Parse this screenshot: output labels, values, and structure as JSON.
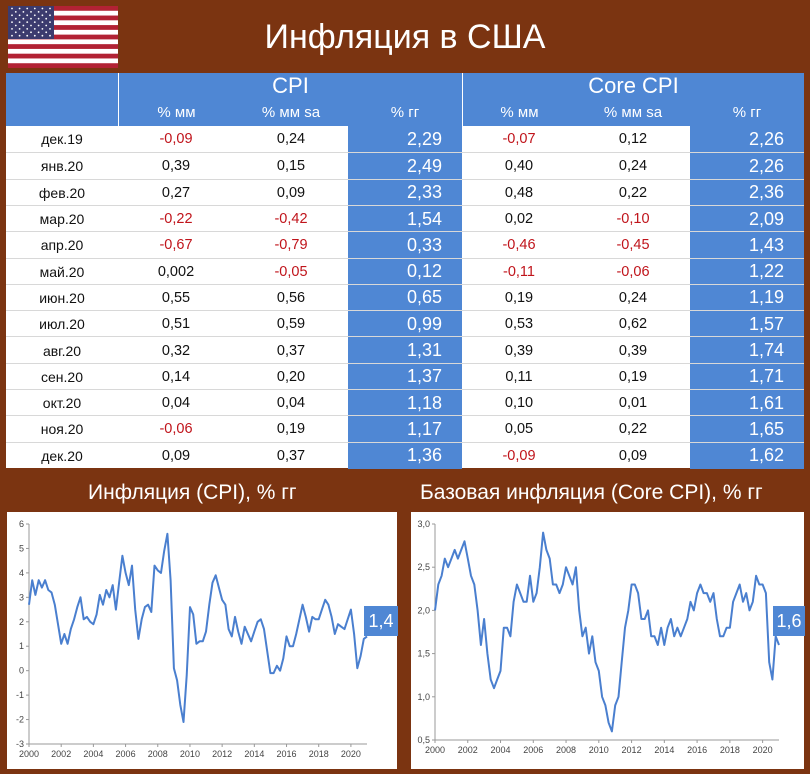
{
  "title": "Инфляция в США",
  "flag_icon": "us-flag-icon",
  "colors": {
    "brown": "#7b3411",
    "blue": "#4f87d4",
    "red": "#c0141b",
    "line": "#4a7fcf"
  },
  "table": {
    "groups": [
      "CPI",
      "Core CPI"
    ],
    "columns": [
      "% мм",
      "% мм sa",
      "% гг",
      "% мм",
      "% мм sa",
      "% гг"
    ],
    "rows": [
      {
        "label": "дек.19",
        "cpi_mm": "-0,09",
        "cpi_mm_sa": "0,24",
        "cpi_yy": "2,29",
        "core_mm": "-0,07",
        "core_mm_sa": "0,12",
        "core_yy": "2,26"
      },
      {
        "label": "янв.20",
        "cpi_mm": "0,39",
        "cpi_mm_sa": "0,15",
        "cpi_yy": "2,49",
        "core_mm": "0,40",
        "core_mm_sa": "0,24",
        "core_yy": "2,26"
      },
      {
        "label": "фев.20",
        "cpi_mm": "0,27",
        "cpi_mm_sa": "0,09",
        "cpi_yy": "2,33",
        "core_mm": "0,48",
        "core_mm_sa": "0,22",
        "core_yy": "2,36"
      },
      {
        "label": "мар.20",
        "cpi_mm": "-0,22",
        "cpi_mm_sa": "-0,42",
        "cpi_yy": "1,54",
        "core_mm": "0,02",
        "core_mm_sa": "-0,10",
        "core_yy": "2,09"
      },
      {
        "label": "апр.20",
        "cpi_mm": "-0,67",
        "cpi_mm_sa": "-0,79",
        "cpi_yy": "0,33",
        "core_mm": "-0,46",
        "core_mm_sa": "-0,45",
        "core_yy": "1,43"
      },
      {
        "label": "май.20",
        "cpi_mm": "0,002",
        "cpi_mm_sa": "-0,05",
        "cpi_yy": "0,12",
        "core_mm": "-0,11",
        "core_mm_sa": "-0,06",
        "core_yy": "1,22"
      },
      {
        "label": "июн.20",
        "cpi_mm": "0,55",
        "cpi_mm_sa": "0,56",
        "cpi_yy": "0,65",
        "core_mm": "0,19",
        "core_mm_sa": "0,24",
        "core_yy": "1,19"
      },
      {
        "label": "июл.20",
        "cpi_mm": "0,51",
        "cpi_mm_sa": "0,59",
        "cpi_yy": "0,99",
        "core_mm": "0,53",
        "core_mm_sa": "0,62",
        "core_yy": "1,57"
      },
      {
        "label": "авг.20",
        "cpi_mm": "0,32",
        "cpi_mm_sa": "0,37",
        "cpi_yy": "1,31",
        "core_mm": "0,39",
        "core_mm_sa": "0,39",
        "core_yy": "1,74"
      },
      {
        "label": "сен.20",
        "cpi_mm": "0,14",
        "cpi_mm_sa": "0,20",
        "cpi_yy": "1,37",
        "core_mm": "0,11",
        "core_mm_sa": "0,19",
        "core_yy": "1,71"
      },
      {
        "label": "окт.20",
        "cpi_mm": "0,04",
        "cpi_mm_sa": "0,04",
        "cpi_yy": "1,18",
        "core_mm": "0,10",
        "core_mm_sa": "0,01",
        "core_yy": "1,61"
      },
      {
        "label": "ноя.20",
        "cpi_mm": "-0,06",
        "cpi_mm_sa": "0,19",
        "cpi_yy": "1,17",
        "core_mm": "0,05",
        "core_mm_sa": "0,22",
        "core_yy": "1,65"
      },
      {
        "label": "дек.20",
        "cpi_mm": "0,09",
        "cpi_mm_sa": "0,37",
        "cpi_yy": "1,36",
        "core_mm": "-0,09",
        "core_mm_sa": "0,09",
        "core_yy": "1,62"
      }
    ]
  },
  "chart_data": [
    {
      "type": "line",
      "title": "Инфляция (CPI), % гг",
      "ylim": [
        -3,
        6
      ],
      "yticks": [
        "-3",
        "-2",
        "-1",
        "0",
        "1",
        "2",
        "3",
        "4",
        "5",
        "6"
      ],
      "xlim": [
        2000,
        2021
      ],
      "xticks": [
        "2000",
        "2002",
        "2004",
        "2006",
        "2008",
        "2010",
        "2012",
        "2014",
        "2016",
        "2018",
        "2020"
      ],
      "grid": false,
      "end_label": "1,4",
      "series": [
        {
          "x": [
            2000.0,
            2000.2,
            2000.4,
            2000.6,
            2000.8,
            2001.0,
            2001.2,
            2001.4,
            2001.6,
            2001.8,
            2002.0,
            2002.2,
            2002.4,
            2002.6,
            2002.8,
            2003.0,
            2003.2,
            2003.4,
            2003.6,
            2003.8,
            2004.0,
            2004.2,
            2004.4,
            2004.6,
            2004.8,
            2005.0,
            2005.2,
            2005.4,
            2005.6,
            2005.8,
            2006.0,
            2006.2,
            2006.4,
            2006.6,
            2006.8,
            2007.0,
            2007.2,
            2007.4,
            2007.6,
            2007.8,
            2008.0,
            2008.2,
            2008.4,
            2008.6,
            2008.8,
            2009.0,
            2009.2,
            2009.4,
            2009.6,
            2009.8,
            2010.0,
            2010.2,
            2010.4,
            2010.6,
            2010.8,
            2011.0,
            2011.2,
            2011.4,
            2011.6,
            2011.8,
            2012.0,
            2012.2,
            2012.4,
            2012.6,
            2012.8,
            2013.0,
            2013.2,
            2013.4,
            2013.6,
            2013.8,
            2014.0,
            2014.2,
            2014.4,
            2014.6,
            2014.8,
            2015.0,
            2015.2,
            2015.4,
            2015.6,
            2015.8,
            2016.0,
            2016.2,
            2016.4,
            2016.6,
            2016.8,
            2017.0,
            2017.2,
            2017.4,
            2017.6,
            2017.8,
            2018.0,
            2018.2,
            2018.4,
            2018.6,
            2018.8,
            2019.0,
            2019.2,
            2019.4,
            2019.6,
            2019.8,
            2020.0,
            2020.2,
            2020.4,
            2020.6,
            2020.8,
            2021.0
          ],
          "y": [
            2.7,
            3.7,
            3.1,
            3.7,
            3.4,
            3.7,
            3.3,
            3.2,
            2.7,
            1.9,
            1.1,
            1.5,
            1.1,
            1.7,
            2.1,
            2.6,
            3.0,
            2.1,
            2.2,
            2.0,
            1.9,
            2.3,
            3.1,
            2.7,
            3.3,
            3.0,
            3.5,
            2.5,
            3.6,
            4.7,
            4.0,
            3.5,
            4.3,
            2.5,
            1.3,
            2.1,
            2.6,
            2.7,
            2.4,
            4.3,
            4.1,
            4.0,
            4.9,
            5.6,
            3.7,
            0.1,
            -0.4,
            -1.4,
            -2.1,
            -0.2,
            2.6,
            2.3,
            1.1,
            1.2,
            1.2,
            1.6,
            2.7,
            3.6,
            3.9,
            3.4,
            2.9,
            2.7,
            1.7,
            1.4,
            2.2,
            1.6,
            1.1,
            1.8,
            1.5,
            1.2,
            1.6,
            2.0,
            2.1,
            1.7,
            0.8,
            -0.1,
            -0.1,
            0.2,
            0.0,
            0.5,
            1.4,
            1.0,
            1.0,
            1.5,
            2.1,
            2.7,
            2.2,
            1.6,
            2.2,
            2.1,
            2.1,
            2.5,
            2.9,
            2.7,
            2.2,
            1.5,
            1.9,
            1.8,
            1.7,
            2.1,
            2.5,
            1.5,
            0.1,
            0.6,
            1.3,
            1.4
          ]
        }
      ]
    },
    {
      "type": "line",
      "title": "Базовая инфляция (Core CPI), % гг",
      "ylim": [
        0.5,
        3.0
      ],
      "yticks": [
        "0,5",
        "1,0",
        "1,5",
        "2,0",
        "2,5",
        "3,0"
      ],
      "xlim": [
        2000,
        2021
      ],
      "xticks": [
        "2000",
        "2002",
        "2004",
        "2006",
        "2008",
        "2010",
        "2012",
        "2014",
        "2016",
        "2018",
        "2020"
      ],
      "grid": false,
      "end_label": "1,6",
      "series": [
        {
          "x": [
            2000.0,
            2000.2,
            2000.4,
            2000.6,
            2000.8,
            2001.0,
            2001.2,
            2001.4,
            2001.6,
            2001.8,
            2002.0,
            2002.2,
            2002.4,
            2002.6,
            2002.8,
            2003.0,
            2003.2,
            2003.4,
            2003.6,
            2003.8,
            2004.0,
            2004.2,
            2004.4,
            2004.6,
            2004.8,
            2005.0,
            2005.2,
            2005.4,
            2005.6,
            2005.8,
            2006.0,
            2006.2,
            2006.4,
            2006.6,
            2006.8,
            2007.0,
            2007.2,
            2007.4,
            2007.6,
            2007.8,
            2008.0,
            2008.2,
            2008.4,
            2008.6,
            2008.8,
            2009.0,
            2009.2,
            2009.4,
            2009.6,
            2009.8,
            2010.0,
            2010.2,
            2010.4,
            2010.6,
            2010.8,
            2011.0,
            2011.2,
            2011.4,
            2011.6,
            2011.8,
            2012.0,
            2012.2,
            2012.4,
            2012.6,
            2012.8,
            2013.0,
            2013.2,
            2013.4,
            2013.6,
            2013.8,
            2014.0,
            2014.2,
            2014.4,
            2014.6,
            2014.8,
            2015.0,
            2015.2,
            2015.4,
            2015.6,
            2015.8,
            2016.0,
            2016.2,
            2016.4,
            2016.6,
            2016.8,
            2017.0,
            2017.2,
            2017.4,
            2017.6,
            2017.8,
            2018.0,
            2018.2,
            2018.4,
            2018.6,
            2018.8,
            2019.0,
            2019.2,
            2019.4,
            2019.6,
            2019.8,
            2020.0,
            2020.2,
            2020.4,
            2020.6,
            2020.8,
            2021.0
          ],
          "y": [
            2.0,
            2.3,
            2.4,
            2.6,
            2.5,
            2.6,
            2.7,
            2.6,
            2.7,
            2.8,
            2.6,
            2.4,
            2.3,
            2.0,
            1.6,
            1.9,
            1.5,
            1.2,
            1.1,
            1.2,
            1.3,
            1.8,
            1.8,
            1.7,
            2.1,
            2.3,
            2.2,
            2.1,
            2.1,
            2.4,
            2.1,
            2.2,
            2.5,
            2.9,
            2.7,
            2.6,
            2.3,
            2.3,
            2.2,
            2.3,
            2.5,
            2.4,
            2.3,
            2.5,
            2.0,
            1.7,
            1.8,
            1.5,
            1.7,
            1.4,
            1.3,
            1.0,
            0.9,
            0.7,
            0.6,
            0.9,
            1.0,
            1.4,
            1.8,
            2.0,
            2.3,
            2.3,
            2.2,
            1.9,
            1.9,
            2.0,
            1.7,
            1.7,
            1.6,
            1.8,
            1.6,
            1.8,
            1.9,
            1.7,
            1.8,
            1.7,
            1.8,
            1.9,
            2.1,
            2.0,
            2.2,
            2.3,
            2.2,
            2.2,
            2.1,
            2.2,
            1.9,
            1.7,
            1.7,
            1.8,
            1.8,
            2.1,
            2.2,
            2.3,
            2.1,
            2.2,
            2.0,
            2.1,
            2.4,
            2.3,
            2.3,
            2.2,
            1.4,
            1.2,
            1.7,
            1.6
          ]
        }
      ]
    }
  ]
}
